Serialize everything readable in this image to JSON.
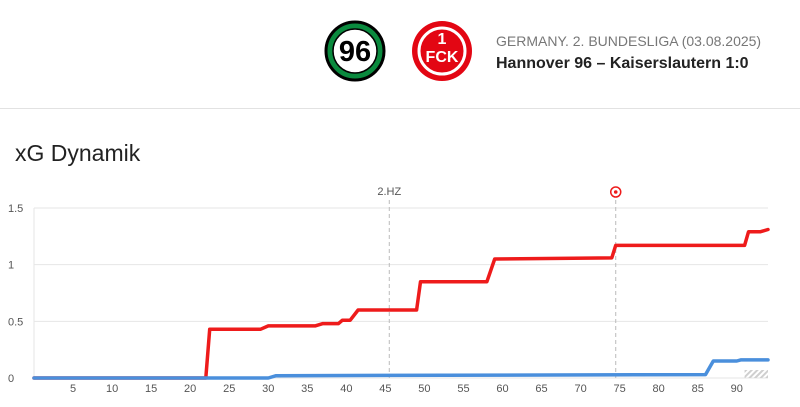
{
  "header": {
    "home_logo_text": "96",
    "away_logo_text": "FCK",
    "competition": "GERMANY. 2. BUNDESLIGA (03.08.2025)",
    "match": "Hannover 96 – Kaiserslautern 1:0"
  },
  "section_title": "xG Dynamik",
  "colors": {
    "home": "#4a8fdc",
    "away": "#ee1b1b",
    "grid": "#e6e6e6",
    "marker": "#bbbbbb",
    "home_logo": "#0a8a3e",
    "away_logo": "#e30613"
  },
  "chart_data": {
    "type": "line",
    "x_ticks": [
      5,
      10,
      15,
      20,
      25,
      30,
      35,
      40,
      45,
      50,
      55,
      60,
      65,
      70,
      75,
      80,
      85,
      90
    ],
    "y_ticks": [
      "0",
      "0.5",
      "1",
      "1.5"
    ],
    "y_tick_values": [
      0,
      0.5,
      1,
      1.5
    ],
    "xlim": [
      0,
      94
    ],
    "ylim": [
      0,
      1.5
    ],
    "grid": true,
    "legend": "none",
    "markers": [
      {
        "label": "2.HZ",
        "x": 45.5
      },
      {
        "label": "",
        "x": 74.5,
        "icon": "goal-ball-icon"
      }
    ],
    "series": [
      {
        "team": "Kaiserslautern",
        "color": "#ee1b1b",
        "points": [
          [
            0,
            0
          ],
          [
            22,
            0
          ],
          [
            22.5,
            0.43
          ],
          [
            29,
            0.43
          ],
          [
            30,
            0.46
          ],
          [
            36,
            0.46
          ],
          [
            37,
            0.48
          ],
          [
            39,
            0.48
          ],
          [
            39.5,
            0.51
          ],
          [
            40.5,
            0.51
          ],
          [
            41.5,
            0.6
          ],
          [
            49,
            0.6
          ],
          [
            49.5,
            0.85
          ],
          [
            58,
            0.85
          ],
          [
            59,
            1.05
          ],
          [
            74,
            1.06
          ],
          [
            74.5,
            1.17
          ],
          [
            91,
            1.17
          ],
          [
            91.5,
            1.29
          ],
          [
            93,
            1.29
          ],
          [
            94,
            1.31
          ]
        ]
      },
      {
        "team": "Hannover 96",
        "color": "#4a8fdc",
        "points": [
          [
            0,
            0
          ],
          [
            30,
            0
          ],
          [
            31,
            0.02
          ],
          [
            86,
            0.03
          ],
          [
            87,
            0.15
          ],
          [
            90,
            0.15
          ],
          [
            90.5,
            0.16
          ],
          [
            94,
            0.16
          ]
        ]
      }
    ]
  }
}
